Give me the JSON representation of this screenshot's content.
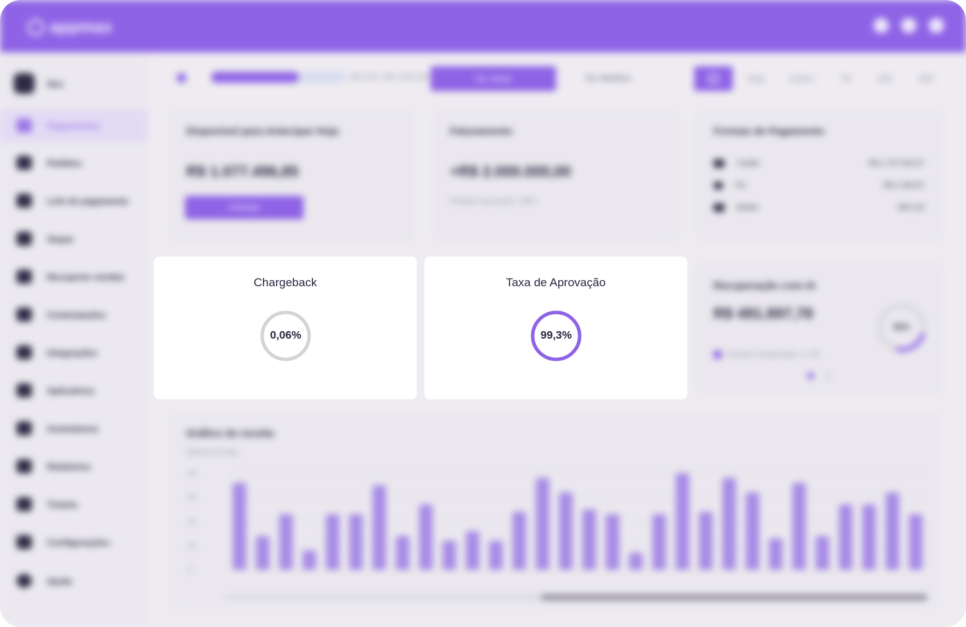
{
  "app": {
    "logo_text": "appmax",
    "top_icons": [
      "bell-icon",
      "chat-icon",
      "user-icon"
    ]
  },
  "sidebar": {
    "user_label": "Seu",
    "items": [
      {
        "label": "Pagamentos",
        "icon": "home-icon",
        "active": true
      },
      {
        "label": "Pedidos",
        "icon": "cart-icon"
      },
      {
        "label": "Link de pagamento",
        "icon": "link-icon"
      },
      {
        "label": "Saque",
        "icon": "wallet-icon"
      },
      {
        "label": "Recuperar vendas",
        "icon": "refresh-icon"
      },
      {
        "label": "Contestações",
        "icon": "shield-icon"
      },
      {
        "label": "Integrações",
        "icon": "plug-icon"
      },
      {
        "label": "Aplicativos",
        "icon": "grid-icon"
      },
      {
        "label": "Assinaturas",
        "icon": "tag-icon"
      },
      {
        "label": "Relatórios",
        "icon": "chart-icon"
      },
      {
        "label": "Tickets",
        "icon": "ticket-icon"
      },
      {
        "label": "Configurações",
        "icon": "gear-icon"
      },
      {
        "label": "Ajuda",
        "icon": "help-icon"
      }
    ]
  },
  "filters": {
    "progress_text": "R$ 0,00 / R$ 1.000.000",
    "progress_fraction": 0.65,
    "primary_button": "Ver metas",
    "link_text": "Ver detalhes",
    "periods": [
      "Hoje",
      "Ontem",
      "7D",
      "15D",
      "30D",
      "60D"
    ]
  },
  "cards": {
    "available": {
      "title": "Disponível para Antecipar Hoje",
      "value": "R$ 1.077.496,85",
      "button": "Antecipar"
    },
    "billing": {
      "title": "Faturamento",
      "value": "+R$ 2.000.000,00",
      "sub": "Pedidos Aprovados: 4800"
    },
    "payment_methods": {
      "title": "Formas de Pagamento",
      "rows": [
        {
          "label": "Cartão",
          "value": "R$ 1.707.903,07",
          "icon": "card-icon"
        },
        {
          "label": "Pix",
          "value": "R$ 2.309,87",
          "icon": "pix-icon"
        },
        {
          "label": "Boleto",
          "value": "R$ 0,00",
          "icon": "barcode-icon"
        }
      ]
    },
    "recovery": {
      "title": "Recuperação com IA",
      "value": "R$ 491.897,78",
      "legend": "Vendas recuperadas: 1.745",
      "percent": "30%"
    }
  },
  "metrics": {
    "chargeback": {
      "title": "Chargeback",
      "value": "0,06%",
      "fraction": 0.0006,
      "color": "#d4d4d4"
    },
    "approval": {
      "title": "Taxa de Aprovação",
      "value": "99,3%",
      "fraction": 0.993,
      "color": "#8e63e6"
    }
  },
  "chart_data": {
    "type": "bar",
    "title": "Gráfico de receita",
    "subtitle": "Últimos 30 dias",
    "ylim": [
      0,
      40
    ],
    "yticks": [
      "0",
      "10",
      "20",
      "30",
      "40"
    ],
    "values": [
      36,
      14,
      23,
      8,
      23,
      23,
      35,
      14,
      27,
      12,
      16,
      12,
      24,
      38,
      32,
      25,
      23,
      7,
      23,
      40,
      24,
      38,
      32,
      13,
      36,
      14,
      27,
      27,
      32,
      23
    ],
    "bar_color": "#a78be6"
  }
}
